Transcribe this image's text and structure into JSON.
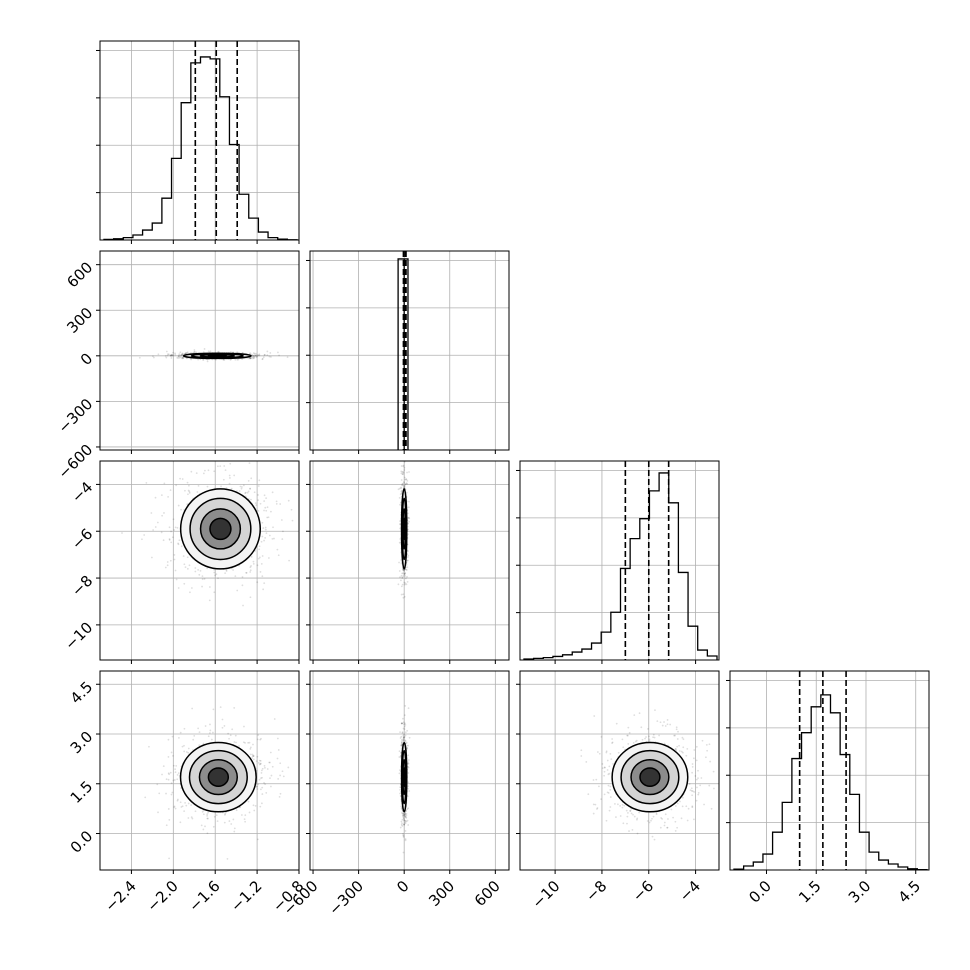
{
  "chart_data": {
    "type": "corner",
    "grid": true,
    "n_params": 4,
    "quantiles": [
      0.16,
      0.5,
      0.84
    ],
    "params": [
      {
        "index": 0,
        "range": [
          -2.7,
          -0.8
        ],
        "ticks": [
          -2.4,
          -2.0,
          -1.6,
          -1.2,
          -0.8
        ],
        "tick_labels": [
          "−2.4",
          "−2.0",
          "−1.6",
          "−1.2",
          "−0.8"
        ],
        "quantile_lines": [
          -1.79,
          -1.59,
          -1.39
        ],
        "histogram": [
          0.003,
          0.006,
          0.012,
          0.025,
          0.05,
          0.085,
          0.21,
          0.41,
          0.69,
          0.89,
          0.92,
          0.91,
          0.72,
          0.48,
          0.23,
          0.11,
          0.04,
          0.012,
          0.004,
          0.001
        ]
      },
      {
        "index": 1,
        "range": [
          -620,
          690
        ],
        "ticks": [
          -600,
          -300,
          0,
          300,
          600
        ],
        "tick_labels": [
          "−600",
          "−300",
          "0",
          "300",
          "600"
        ],
        "quantile_lines": [
          -5,
          5,
          12
        ],
        "histogram_bins": [
          [
            -40,
            0,
            0.96
          ],
          [
            0,
            25,
            0.96
          ]
        ]
      },
      {
        "index": 2,
        "range": [
          -11.5,
          -3.0
        ],
        "ticks": [
          -10,
          -8,
          -6,
          -4
        ],
        "tick_labels": [
          "−10",
          "−8",
          "−6",
          "−4"
        ],
        "quantile_lines": [
          -7.0,
          -6.0,
          -5.15
        ],
        "histogram": [
          0.005,
          0.008,
          0.012,
          0.018,
          0.026,
          0.04,
          0.055,
          0.085,
          0.14,
          0.24,
          0.46,
          0.61,
          0.71,
          0.85,
          0.94,
          0.79,
          0.44,
          0.17,
          0.05,
          0.02
        ]
      },
      {
        "index": 3,
        "range": [
          -1.1,
          4.9
        ],
        "ticks": [
          0.0,
          1.5,
          3.0,
          4.5
        ],
        "tick_labels": [
          "0.0",
          "1.5",
          "3.0",
          "4.5"
        ],
        "quantile_lines": [
          1.0,
          1.7,
          2.4
        ],
        "histogram": [
          0.004,
          0.02,
          0.04,
          0.08,
          0.19,
          0.34,
          0.56,
          0.69,
          0.82,
          0.88,
          0.79,
          0.58,
          0.38,
          0.19,
          0.09,
          0.05,
          0.03,
          0.015,
          0.006,
          0.002
        ]
      }
    ],
    "pairs": [
      {
        "row": 1,
        "col": 0,
        "center": [
          -1.58,
          0
        ],
        "spread": [
          0.17,
          9
        ]
      },
      {
        "row": 2,
        "col": 0,
        "center": [
          -1.55,
          -5.9
        ],
        "spread": [
          0.2,
          0.9
        ]
      },
      {
        "row": 2,
        "col": 1,
        "center": [
          0,
          -5.9
        ],
        "spread": [
          9,
          0.9
        ]
      },
      {
        "row": 3,
        "col": 0,
        "center": [
          -1.57,
          1.7
        ],
        "spread": [
          0.19,
          0.55
        ]
      },
      {
        "row": 3,
        "col": 1,
        "center": [
          0,
          1.7
        ],
        "spread": [
          9,
          0.55
        ]
      },
      {
        "row": 3,
        "col": 2,
        "center": [
          -5.95,
          1.7
        ],
        "spread": [
          0.85,
          0.55
        ]
      }
    ]
  }
}
